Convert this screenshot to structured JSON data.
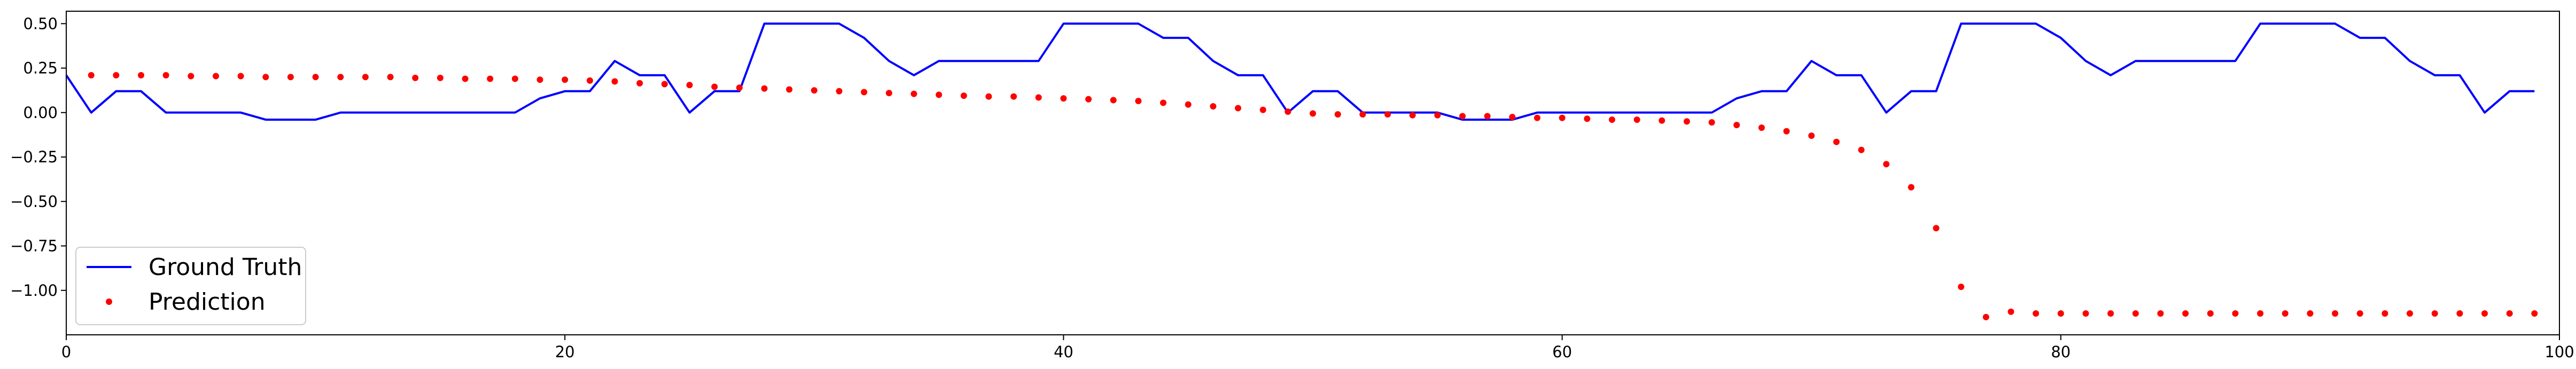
{
  "chart_data": {
    "type": "line",
    "title": "",
    "xlabel": "",
    "ylabel": "",
    "xlim": [
      0,
      100
    ],
    "ylim": [
      -1.25,
      0.57
    ],
    "x_ticks": [
      0,
      20,
      40,
      60,
      80,
      100
    ],
    "x_tick_labels": [
      "0",
      "20",
      "40",
      "60",
      "80",
      "100"
    ],
    "y_ticks": [
      0.5,
      0.25,
      0.0,
      -0.25,
      -0.5,
      -0.75,
      -1.0
    ],
    "y_tick_labels": [
      "0.50",
      "0.25",
      "0.00",
      "−0.25",
      "−0.50",
      "−0.75",
      "−1.00"
    ],
    "grid": false,
    "legend_position": "lower-left",
    "series": [
      {
        "name": "Ground Truth",
        "kind": "line",
        "color": "#0000ff",
        "x": [
          0,
          1,
          2,
          3,
          4,
          5,
          6,
          7,
          8,
          9,
          10,
          11,
          12,
          13,
          14,
          15,
          16,
          17,
          18,
          19,
          20,
          21,
          22,
          23,
          24,
          25,
          26,
          27,
          28,
          29,
          30,
          31,
          32,
          33,
          34,
          35,
          36,
          37,
          38,
          39,
          40,
          41,
          42,
          43,
          44,
          45,
          46,
          47,
          48,
          49,
          50,
          51,
          52,
          53,
          54,
          55,
          56,
          57,
          58,
          59,
          60,
          61,
          62,
          63,
          64,
          65,
          66,
          67,
          68,
          69,
          70,
          71,
          72,
          73,
          74,
          75,
          76,
          77,
          78,
          79,
          80,
          81,
          82,
          83,
          84,
          85,
          86,
          87,
          88,
          89,
          90,
          91,
          92,
          93,
          94,
          95,
          96,
          97,
          98,
          99
        ],
        "y": [
          0.21,
          0.0,
          0.12,
          0.12,
          0.0,
          0.0,
          0.0,
          0.0,
          -0.04,
          -0.04,
          -0.04,
          0.0,
          0.0,
          0.0,
          0.0,
          0.0,
          0.0,
          0.0,
          0.0,
          0.08,
          0.12,
          0.12,
          0.29,
          0.21,
          0.21,
          0.0,
          0.12,
          0.12,
          0.5,
          0.5,
          0.5,
          0.5,
          0.42,
          0.29,
          0.21,
          0.29,
          0.29,
          0.29,
          0.29,
          0.29,
          0.5,
          0.5,
          0.5,
          0.5,
          0.42,
          0.42,
          0.29,
          0.21,
          0.21,
          0.0,
          0.12,
          0.12,
          0.0,
          0.0,
          0.0,
          0.0,
          -0.04,
          -0.04,
          -0.04,
          0.0,
          0.0,
          0.0,
          0.0,
          0.0,
          0.0,
          0.0,
          0.0,
          0.08,
          0.12,
          0.12,
          0.29,
          0.21,
          0.21,
          0.0,
          0.12,
          0.12,
          0.5,
          0.5,
          0.5,
          0.5,
          0.42,
          0.29,
          0.21,
          0.29,
          0.29,
          0.29,
          0.29,
          0.29,
          0.5,
          0.5,
          0.5,
          0.5,
          0.42,
          0.42,
          0.29,
          0.21,
          0.21,
          0.0,
          0.12,
          0.12
        ]
      },
      {
        "name": "Prediction",
        "kind": "scatter",
        "color": "#ff0000",
        "x": [
          1,
          2,
          3,
          4,
          5,
          6,
          7,
          8,
          9,
          10,
          11,
          12,
          13,
          14,
          15,
          16,
          17,
          18,
          19,
          20,
          21,
          22,
          23,
          24,
          25,
          26,
          27,
          28,
          29,
          30,
          31,
          32,
          33,
          34,
          35,
          36,
          37,
          38,
          39,
          40,
          41,
          42,
          43,
          44,
          45,
          46,
          47,
          48,
          49,
          50,
          51,
          52,
          53,
          54,
          55,
          56,
          57,
          58,
          59,
          60,
          61,
          62,
          63,
          64,
          65,
          66,
          67,
          68,
          69,
          70,
          71,
          72,
          73,
          74,
          75,
          76,
          77,
          78,
          79,
          80,
          81,
          82,
          83,
          84,
          85,
          86,
          87,
          88,
          89,
          90,
          91,
          92,
          93,
          94,
          95,
          96,
          97,
          98,
          99
        ],
        "y": [
          0.21,
          0.21,
          0.21,
          0.21,
          0.205,
          0.205,
          0.205,
          0.2,
          0.2,
          0.2,
          0.2,
          0.2,
          0.2,
          0.195,
          0.195,
          0.19,
          0.19,
          0.19,
          0.185,
          0.185,
          0.18,
          0.175,
          0.165,
          0.16,
          0.155,
          0.145,
          0.14,
          0.135,
          0.13,
          0.125,
          0.12,
          0.115,
          0.11,
          0.105,
          0.1,
          0.095,
          0.09,
          0.09,
          0.085,
          0.08,
          0.075,
          0.07,
          0.065,
          0.055,
          0.045,
          0.035,
          0.025,
          0.015,
          0.005,
          -0.005,
          -0.01,
          -0.01,
          -0.01,
          -0.015,
          -0.015,
          -0.02,
          -0.02,
          -0.025,
          -0.03,
          -0.03,
          -0.035,
          -0.04,
          -0.04,
          -0.045,
          -0.05,
          -0.055,
          -0.07,
          -0.085,
          -0.105,
          -0.13,
          -0.165,
          -0.21,
          -0.29,
          -0.42,
          -0.65,
          -0.98,
          -1.15,
          -1.12,
          -1.13,
          -1.13,
          -1.13,
          -1.13,
          -1.13,
          -1.13,
          -1.13,
          -1.13,
          -1.13,
          -1.13,
          -1.13,
          -1.13,
          -1.13,
          -1.13,
          -1.13,
          -1.13,
          -1.13,
          -1.13,
          -1.13,
          -1.13,
          -1.13
        ]
      }
    ]
  }
}
